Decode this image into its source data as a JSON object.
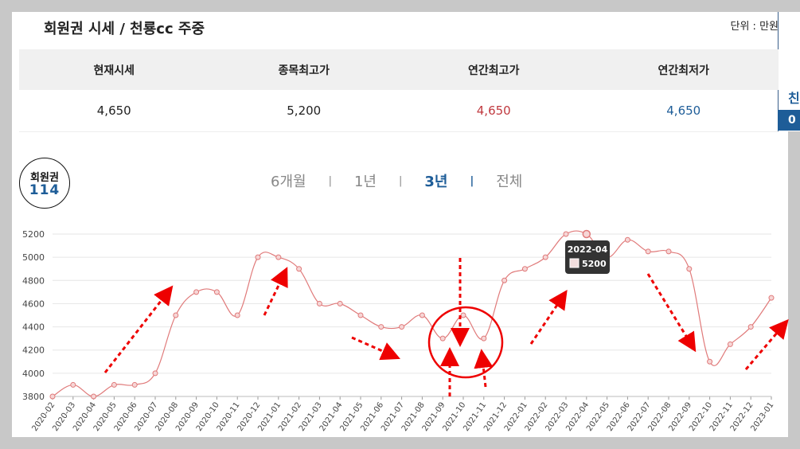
{
  "header": {
    "title": "회원권 시세 / 천룡cc 주중",
    "unit": "단위 : 만원"
  },
  "side": {
    "label": "친",
    "badge": "0"
  },
  "summary": {
    "headers": [
      "현재시세",
      "종목최고가",
      "연간최고가",
      "연간최저가"
    ],
    "values": [
      "4,650",
      "5,200",
      "4,650",
      "4,650"
    ],
    "colors": [
      "#222222",
      "#222222",
      "#c0393f",
      "#1e5d98"
    ]
  },
  "logo": {
    "top": "회원권",
    "num": "114"
  },
  "periods": {
    "items": [
      "6개월",
      "1년",
      "3년",
      "전체"
    ],
    "active": "3년"
  },
  "tooltip": {
    "date": "2022-04",
    "value": "5200"
  },
  "chart_data": {
    "type": "line",
    "x": [
      "2020-02",
      "2020-03",
      "2020-04",
      "2020-05",
      "2020-06",
      "2020-07",
      "2020-08",
      "2020-09",
      "2020-10",
      "2020-11",
      "2020-12",
      "2021-01",
      "2021-02",
      "2021-03",
      "2021-04",
      "2021-05",
      "2021-06",
      "2021-07",
      "2021-08",
      "2021-09",
      "2021-10",
      "2021-11",
      "2021-12",
      "2022-01",
      "2022-02",
      "2022-03",
      "2022-04",
      "2022-05",
      "2022-06",
      "2022-07",
      "2022-08",
      "2022-09",
      "2022-10",
      "2022-11",
      "2022-12",
      "2023-01"
    ],
    "series": [
      {
        "values": [
          3800,
          3900,
          3800,
          3900,
          3900,
          4000,
          4500,
          4700,
          4700,
          4500,
          5000,
          5000,
          4900,
          4600,
          4600,
          4500,
          4400,
          4400,
          4500,
          4300,
          4500,
          4300,
          4800,
          4900,
          5000,
          5200,
          5200,
          5000,
          5150,
          5050,
          5050,
          4900,
          4100,
          4250,
          4400,
          4650
        ],
        "color": "#e07a7a"
      }
    ],
    "yticks": [
      3800,
      4000,
      4200,
      4400,
      4600,
      4800,
      5000,
      5200
    ],
    "ylim": [
      3800,
      5200
    ],
    "grid": true,
    "highlighted_point": "2022-04"
  }
}
